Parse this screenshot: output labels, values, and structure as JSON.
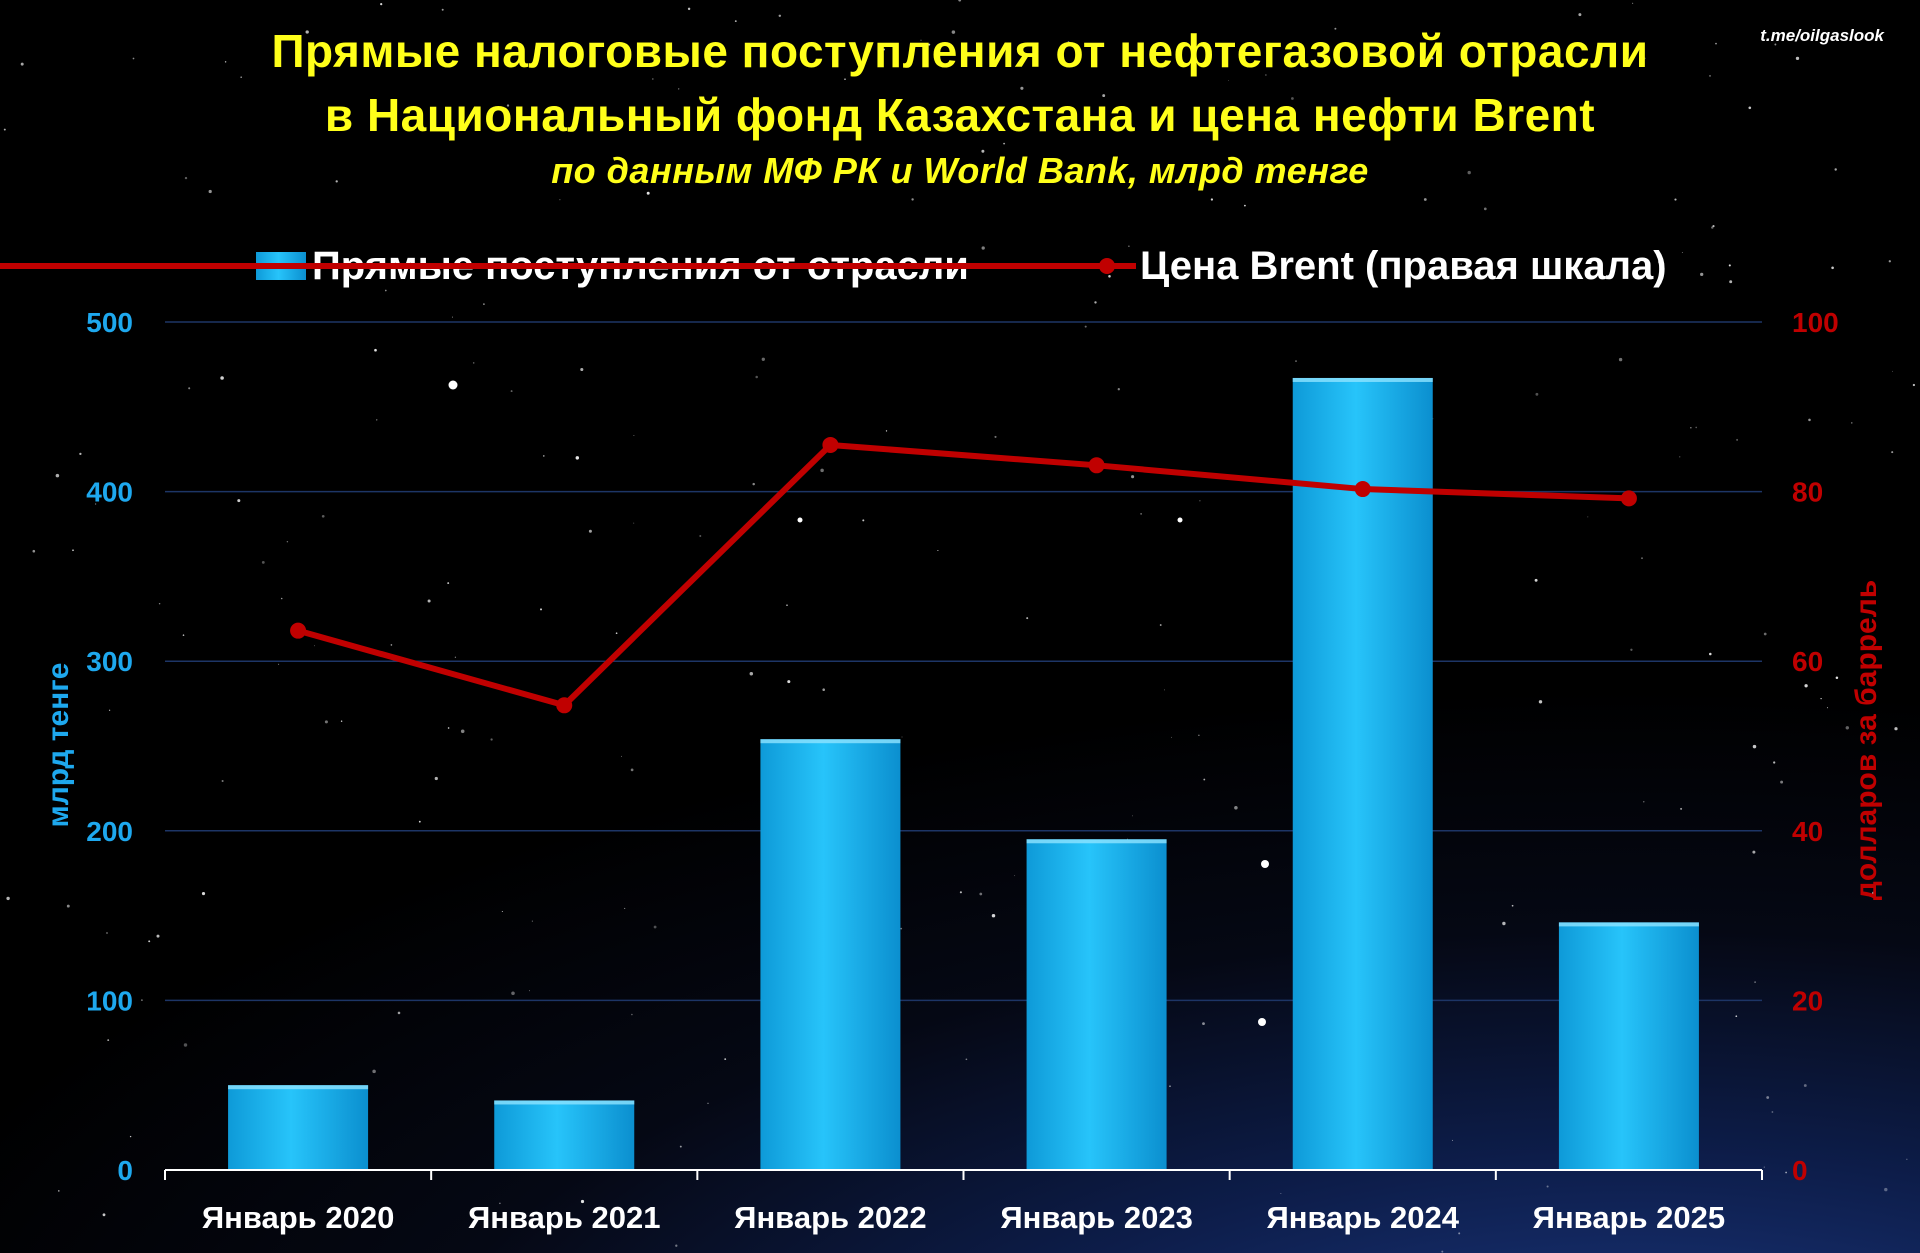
{
  "header": {
    "title_line1": "Прямые налоговые поступления от нефтегазовой отрасли",
    "title_line2": "в Национальный фонд Казахстана и цена нефти Brent",
    "subtitle": "по данным МФ РК и World Bank, млрд тенге",
    "watermark": "t.me/oilgaslook"
  },
  "colors": {
    "bar": "#1ab8f2",
    "line": "#c00000",
    "title": "#ffff1a",
    "left_axis": "#1ea8ee",
    "right_axis": "#c00000"
  },
  "chart_data": {
    "type": "bar",
    "categories": [
      "Январь 2020",
      "Январь 2021",
      "Январь 2022",
      "Январь 2023",
      "Январь 2024",
      "Январь 2025"
    ],
    "series": [
      {
        "name": "Прямые поступления от отрасли",
        "type": "bar",
        "axis": "left",
        "values": [
          50,
          41,
          254,
          195,
          467,
          146
        ]
      },
      {
        "name": "Цена Brent (правая шкала)",
        "type": "line",
        "axis": "right",
        "values": [
          63.6,
          54.8,
          85.5,
          83.1,
          80.3,
          79.2
        ]
      }
    ],
    "ylabel": "млрд тенге",
    "ylabel_right": "долларов за баррель",
    "ylim": [
      0,
      500
    ],
    "ylim_right": [
      0,
      100
    ],
    "yticks": [
      "0",
      "100",
      "200",
      "300",
      "400",
      "500"
    ],
    "yticks_right": [
      "0",
      "20",
      "40",
      "60",
      "80",
      "100"
    ],
    "legend_position": "top",
    "grid": true
  }
}
